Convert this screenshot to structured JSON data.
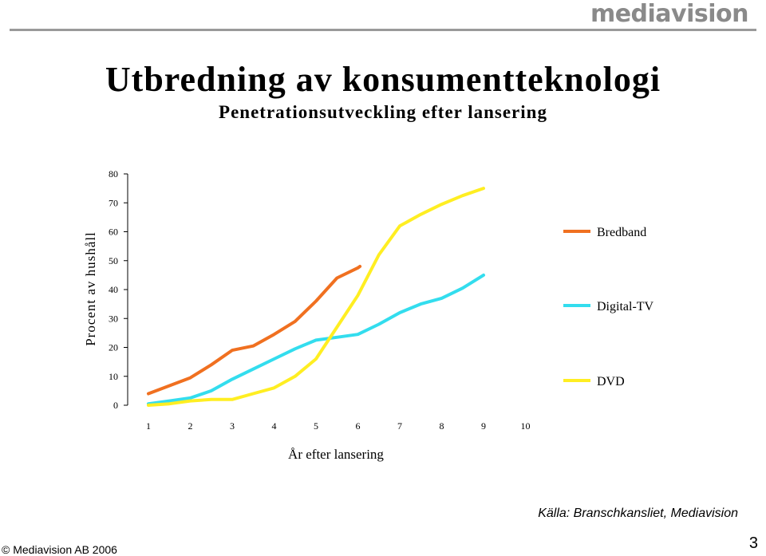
{
  "header": {
    "logo": "mediavision",
    "title": "Utbredning av konsumentteknologi",
    "subtitle": "Penetrationsutveckling efter lansering"
  },
  "colors": {
    "rule": "#9a9a9a",
    "logo": "#8a8a8a"
  },
  "chart_data": {
    "type": "line",
    "x": [
      1,
      2,
      3,
      4,
      5,
      6,
      7,
      8,
      9,
      10
    ],
    "xlabel": "År efter lansering",
    "ylabel": "Procent av hushåll",
    "ylim": [
      0,
      80
    ],
    "yticks": [
      0,
      10,
      20,
      30,
      40,
      50,
      60,
      70,
      80
    ],
    "grid": false,
    "legend_position": "right",
    "series": [
      {
        "name": "Bredband",
        "color": "#f07020",
        "x": [
          1,
          2,
          2.5,
          3,
          3.5,
          4,
          4.5,
          5,
          5.5,
          6,
          6.05
        ],
        "values": [
          4,
          9.5,
          14,
          19,
          20.5,
          24.5,
          29,
          36,
          44,
          47.5,
          48
        ]
      },
      {
        "name": "Digital-TV",
        "color": "#33ddee",
        "x": [
          1,
          1.5,
          2,
          2.5,
          3,
          3.5,
          4,
          4.5,
          5,
          5.5,
          6,
          6.5,
          7,
          7.5,
          8,
          8.5,
          9
        ],
        "values": [
          0.5,
          1.5,
          2.5,
          5,
          9,
          12.5,
          16,
          19.5,
          22.5,
          23.5,
          24.5,
          28,
          32,
          35,
          37,
          40.5,
          45
        ]
      },
      {
        "name": "DVD",
        "color": "#ffee22",
        "x": [
          1,
          1.5,
          2,
          2.5,
          3,
          3.5,
          4,
          4.5,
          5,
          5.5,
          6,
          6.5,
          7,
          7.5,
          8,
          8.5,
          9
        ],
        "values": [
          0,
          0.5,
          1.5,
          2,
          2,
          4,
          6,
          10,
          16,
          27,
          38,
          52,
          62,
          66,
          69.5,
          72.5,
          75
        ]
      }
    ]
  },
  "footer": {
    "source": "Källa: Branschkansliet, Mediavision",
    "copyright": "© Mediavision AB 2006",
    "page": "3"
  }
}
